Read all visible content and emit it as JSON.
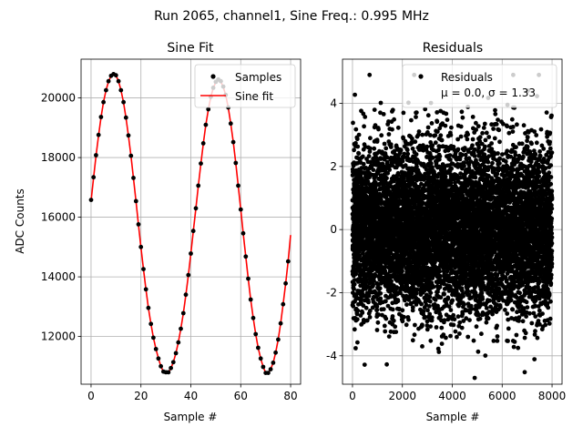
{
  "figure": {
    "suptitle": "Run 2065, channel1, Sine Freq.: 0.995 MHz"
  },
  "chart_data": [
    {
      "type": "scatter",
      "title": "Sine Fit",
      "xlabel": "Sample #",
      "ylabel": "ADC Counts",
      "xlim": [
        -4,
        84
      ],
      "ylim": [
        10400,
        21300
      ],
      "xticks": [
        0,
        20,
        40,
        60,
        80
      ],
      "yticks": [
        12000,
        14000,
        16000,
        18000,
        20000
      ],
      "grid": true,
      "legend_position": "top-right",
      "series": [
        {
          "name": "Samples",
          "kind": "points",
          "color": "#000000",
          "x": [
            0,
            1,
            2,
            3,
            4,
            5,
            6,
            7,
            8,
            9,
            10,
            11,
            12,
            13,
            14,
            15,
            16,
            17,
            18,
            19,
            20,
            21,
            22,
            23,
            24,
            25,
            26,
            27,
            28,
            29,
            30,
            31,
            32,
            33,
            34,
            35,
            36,
            37,
            38,
            39,
            40,
            41,
            42,
            43,
            44,
            45,
            46,
            47,
            48,
            49,
            50,
            51,
            52,
            53,
            54,
            55,
            56,
            57,
            58,
            59,
            60,
            61,
            62,
            63,
            64,
            65,
            66,
            67,
            68,
            69,
            70,
            71,
            72,
            73,
            74,
            75,
            76,
            77,
            78,
            79
          ],
          "y": [
            16580,
            17340,
            18080,
            18760,
            19360,
            19860,
            20260,
            20560,
            20740,
            20800,
            20760,
            20560,
            20260,
            19860,
            19340,
            18740,
            18060,
            17320,
            16540,
            15760,
            15000,
            14260,
            13580,
            12960,
            12420,
            11960,
            11580,
            11260,
            11000,
            10820,
            10800,
            10800,
            10940,
            11140,
            11440,
            11800,
            12260,
            12780,
            13400,
            14060,
            14780,
            15540,
            16300,
            17060,
            17800,
            18480,
            19100,
            19620,
            20040,
            20340,
            20540,
            20620,
            20560,
            20380,
            20100,
            19680,
            19140,
            18520,
            17820,
            17060,
            16260,
            15460,
            14680,
            13940,
            13240,
            12620,
            12080,
            11620,
            11260,
            10980,
            10780,
            10780,
            10900,
            11120,
            11460,
            11900,
            12440,
            13080,
            13780,
            14520
          ]
        },
        {
          "name": "Sine fit",
          "kind": "line",
          "color": "#ff0000",
          "x": [
            0,
            1,
            2,
            3,
            4,
            5,
            6,
            7,
            8,
            9,
            10,
            11,
            12,
            13,
            14,
            15,
            16,
            17,
            18,
            19,
            20,
            21,
            22,
            23,
            24,
            25,
            26,
            27,
            28,
            29,
            30,
            31,
            32,
            33,
            34,
            35,
            36,
            37,
            38,
            39,
            40,
            41,
            42,
            43,
            44,
            45,
            46,
            47,
            48,
            49,
            50,
            51,
            52,
            53,
            54,
            55,
            56,
            57,
            58,
            59,
            60,
            61,
            62,
            63,
            64,
            65,
            66,
            67,
            68,
            69,
            70,
            71,
            72,
            73,
            74,
            75,
            76,
            77,
            78,
            79,
            80
          ],
          "y": [
            16550,
            17320,
            18060,
            18740,
            19350,
            19860,
            20260,
            20550,
            20730,
            20790,
            20750,
            20560,
            20260,
            19850,
            19330,
            18730,
            18050,
            17310,
            16530,
            15750,
            14990,
            14260,
            13580,
            12960,
            12420,
            11960,
            11580,
            11270,
            11000,
            10820,
            10790,
            10790,
            10930,
            11140,
            11440,
            11810,
            12260,
            12780,
            13390,
            14060,
            14780,
            15530,
            16290,
            17050,
            17790,
            18470,
            19090,
            19610,
            20030,
            20330,
            20530,
            20610,
            20550,
            20370,
            20090,
            19670,
            19140,
            18520,
            17820,
            17060,
            16260,
            15460,
            14680,
            13940,
            13240,
            12620,
            12080,
            11620,
            11260,
            10980,
            10780,
            10780,
            10900,
            11120,
            11460,
            11900,
            12440,
            13080,
            13780,
            14520,
            15400
          ]
        }
      ]
    },
    {
      "type": "scatter",
      "title": "Residuals",
      "xlabel": "Sample #",
      "ylabel": "",
      "xlim": [
        -400,
        8400
      ],
      "ylim": [
        -4.9,
        5.4
      ],
      "xticks": [
        0,
        2000,
        4000,
        6000,
        8000
      ],
      "yticks": [
        -4,
        -2,
        0,
        2,
        4
      ],
      "grid": true,
      "legend_position": "top-right",
      "legend_label": "Residuals",
      "legend_stats": "μ = 0.0, σ = 1.33",
      "series": [
        {
          "name": "Residuals",
          "kind": "points",
          "color": "#000000",
          "count": 8000,
          "mean": 0.0,
          "std": 1.33,
          "x_range": [
            0,
            7999
          ]
        }
      ]
    }
  ]
}
